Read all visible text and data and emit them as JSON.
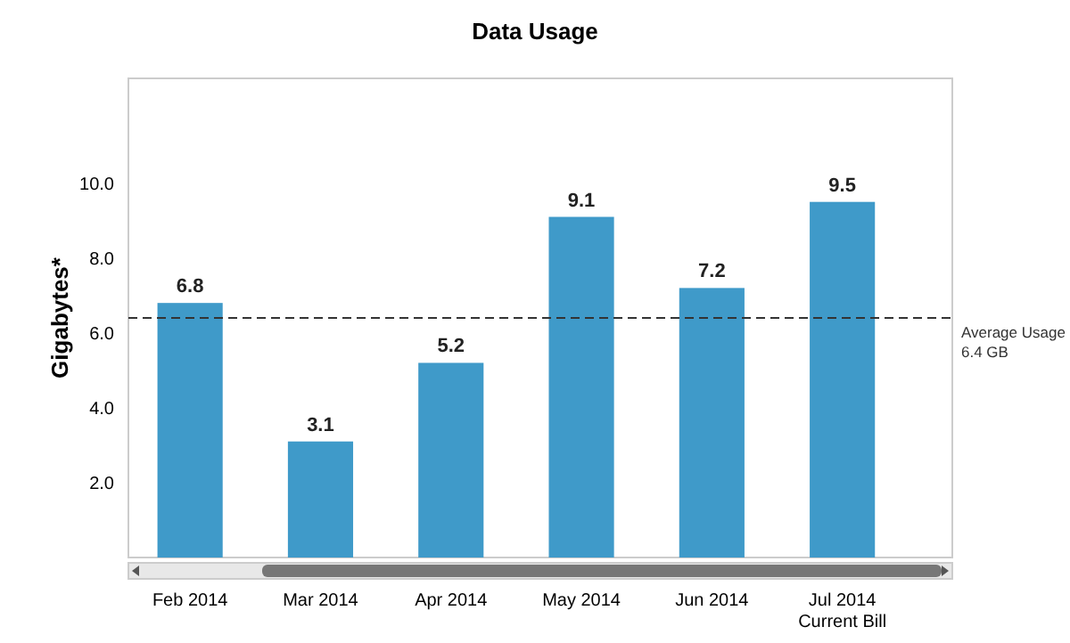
{
  "chart_data": {
    "type": "bar",
    "title": "Data Usage",
    "ylabel": "Gigabytes*",
    "categories": [
      "Feb 2014",
      "Mar 2014",
      "Apr 2014",
      "May 2014",
      "Jun 2014",
      "Jul 2014\nCurrent Bill"
    ],
    "values": [
      6.8,
      3.1,
      5.2,
      9.1,
      7.2,
      9.5
    ],
    "color": "#3f9ac9",
    "data_labels": true,
    "ylim": [
      0,
      12.8
    ],
    "yticks": [
      {
        "value": 2,
        "label": "2.0"
      },
      {
        "value": 4,
        "label": "4.0"
      },
      {
        "value": 6,
        "label": "6.0"
      },
      {
        "value": 8,
        "label": "8.0"
      },
      {
        "value": 10,
        "label": "10.0"
      }
    ],
    "ref_lines": [
      {
        "axis": "y",
        "value": 6.4,
        "label": "Average Usage\n6.4 GB",
        "line_style": "dashed",
        "color": "#333333"
      }
    ],
    "grid": false
  }
}
